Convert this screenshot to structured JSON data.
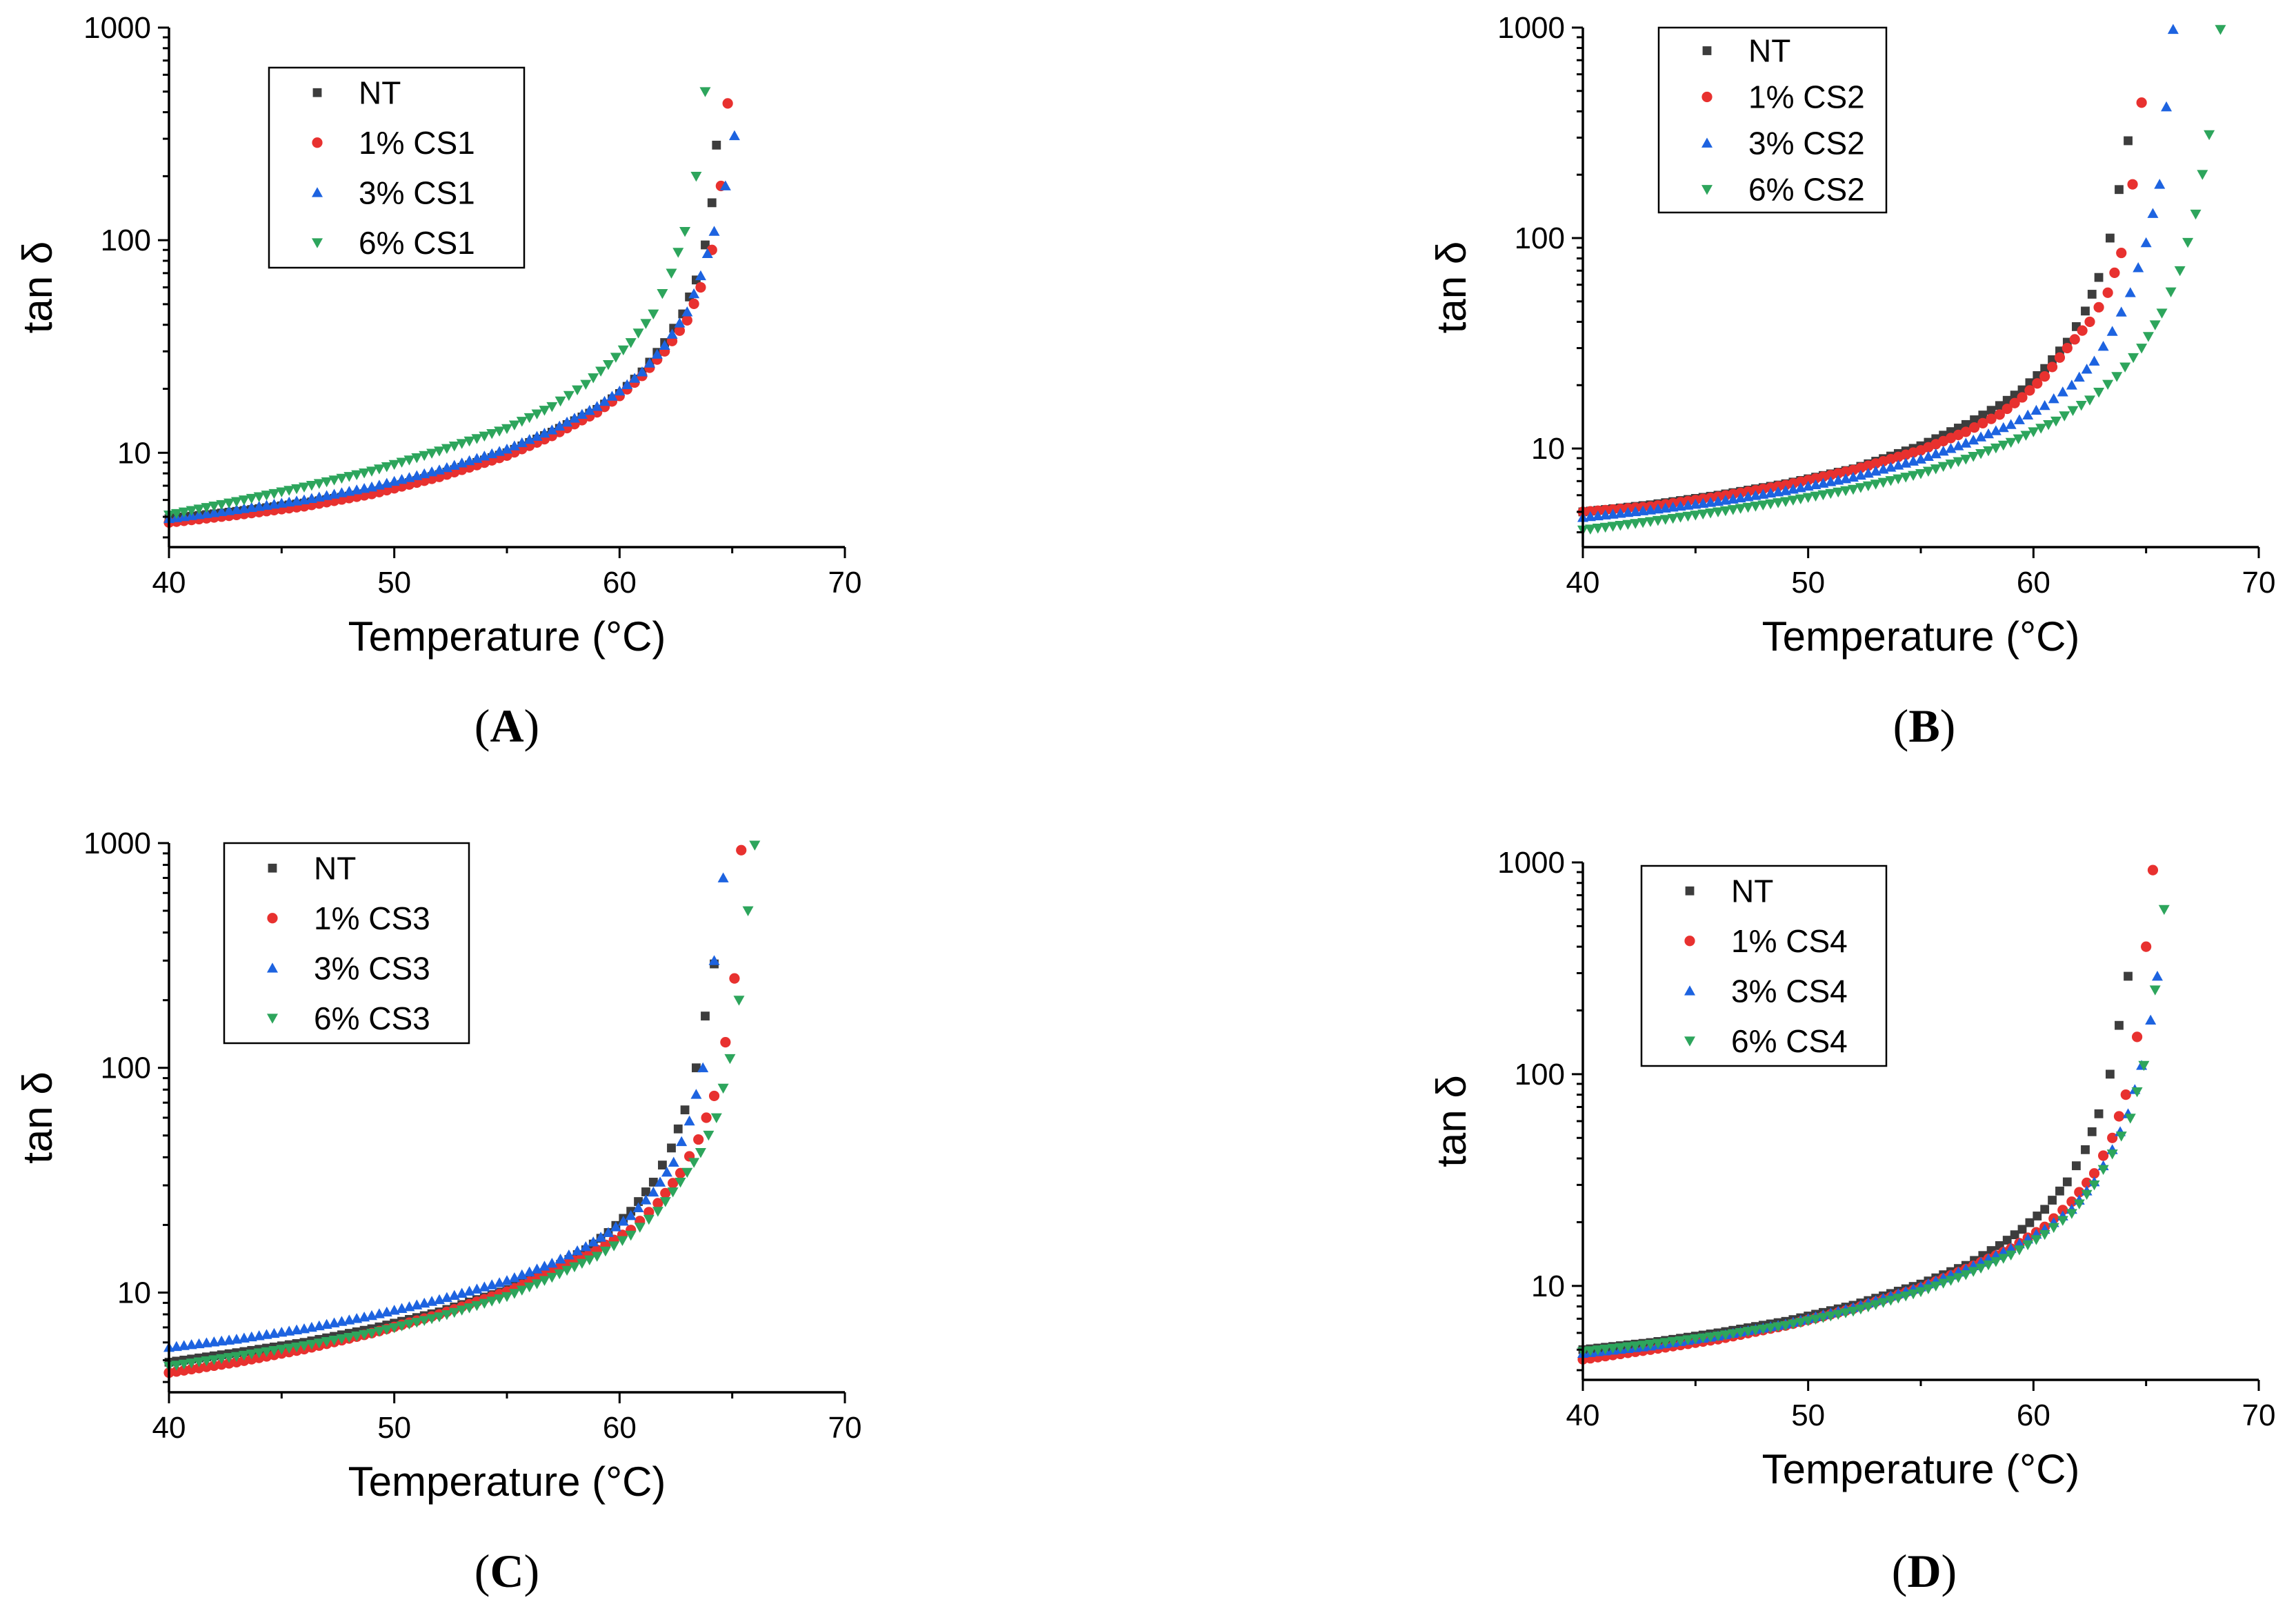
{
  "figure": {
    "panel_labels": [
      "A",
      "B",
      "C",
      "D"
    ]
  },
  "colors": {
    "NT": "#3d3d3d",
    "CS_1pct": "#e8312f",
    "CS_3pct": "#1d63e0",
    "CS_6pct": "#2da55c"
  },
  "chart_data": [
    {
      "panel": "A",
      "type": "scatter",
      "xlabel": "Temperature (°C)",
      "ylabel": "tan δ",
      "xlim": [
        40,
        70
      ],
      "ylim": [
        3.6,
        1000
      ],
      "yscale": "log",
      "x_ticks": [
        40,
        50,
        60,
        70
      ],
      "y_ticks": [
        10,
        100,
        1000
      ],
      "y_tick_labels": [
        "10",
        "100",
        "1000"
      ],
      "legend_position": "top-left",
      "series": [
        {
          "name": "NT",
          "marker": "square",
          "color": "#3d3d3d",
          "x": [
            40,
            43,
            46,
            49,
            52,
            55,
            57,
            59,
            60,
            61,
            62,
            62.8,
            63.4,
            63.8,
            64.1,
            64.3
          ],
          "y": [
            4.9,
            5.3,
            5.8,
            6.5,
            7.9,
            10,
            12.5,
            16,
            19,
            24,
            33,
            45,
            65,
            95,
            150,
            280
          ]
        },
        {
          "name": "1% CS1",
          "marker": "circle",
          "color": "#e8312f",
          "x": [
            40,
            43,
            46,
            49,
            52,
            55,
            57,
            59,
            60,
            61,
            62,
            63,
            63.6,
            64.1,
            64.5,
            64.8
          ],
          "y": [
            4.7,
            5.1,
            5.6,
            6.4,
            7.7,
            9.7,
            12,
            15.5,
            18.5,
            23,
            30,
            42,
            60,
            90,
            180,
            440
          ]
        },
        {
          "name": "3% CS1",
          "marker": "triangle-up",
          "color": "#1d63e0",
          "x": [
            40,
            43,
            46,
            49,
            52,
            55,
            57,
            59,
            60,
            61,
            62,
            63,
            63.6,
            64.2,
            64.7,
            65.1
          ],
          "y": [
            4.9,
            5.4,
            6,
            6.9,
            8.3,
            10.4,
            12.8,
            16.5,
            19.5,
            24,
            32,
            46,
            68,
            110,
            180,
            310
          ]
        },
        {
          "name": "6% CS1",
          "marker": "triangle-down",
          "color": "#2da55c",
          "x": [
            40,
            43,
            46,
            49,
            52,
            55,
            57,
            58.5,
            59.5,
            60.5,
            61.5,
            62.3,
            62.9,
            63.4,
            63.8
          ],
          "y": [
            5.1,
            5.9,
            6.9,
            8.2,
            10.2,
            13,
            16.5,
            21,
            26,
            33,
            45,
            70,
            110,
            200,
            500
          ]
        }
      ]
    },
    {
      "panel": "B",
      "type": "scatter",
      "xlabel": "Temperature (°C)",
      "ylabel": "tan δ",
      "xlim": [
        40,
        70
      ],
      "ylim": [
        3.4,
        1000
      ],
      "yscale": "log",
      "x_ticks": [
        40,
        50,
        60,
        70
      ],
      "y_ticks": [
        10,
        100,
        1000
      ],
      "y_tick_labels": [
        "10",
        "100",
        "1000"
      ],
      "legend_position": "top-left",
      "series": [
        {
          "name": "NT",
          "marker": "square",
          "color": "#3d3d3d",
          "x": [
            40,
            43,
            46,
            49,
            52,
            55,
            57,
            58.5,
            59.5,
            60.5,
            61.5,
            62.3,
            62.9,
            63.4,
            63.8,
            64.2
          ],
          "y": [
            5,
            5.4,
            6,
            6.8,
            8,
            10.3,
            13,
            16,
            19,
            24,
            32,
            45,
            65,
            100,
            170,
            290
          ]
        },
        {
          "name": "1% CS2",
          "marker": "circle",
          "color": "#e8312f",
          "x": [
            40,
            43,
            46,
            49,
            52,
            55,
            57,
            58.5,
            59.5,
            60.5,
            61.5,
            62.5,
            63.3,
            63.9,
            64.4,
            64.8
          ],
          "y": [
            5,
            5.3,
            5.9,
            6.7,
            7.9,
            9.8,
            12,
            14.5,
            17.5,
            22,
            30,
            40,
            55,
            85,
            180,
            440
          ]
        },
        {
          "name": "3% CS2",
          "marker": "triangle-up",
          "color": "#1d63e0",
          "x": [
            40,
            43,
            46,
            49,
            52,
            55,
            57,
            59,
            60.5,
            61.7,
            62.7,
            63.5,
            64.3,
            65,
            65.6,
            66.2
          ],
          "y": [
            4.7,
            5.1,
            5.6,
            6.3,
            7.3,
            8.9,
            10.6,
            13,
            16,
            20,
            26,
            36,
            55,
            95,
            180,
            980
          ]
        },
        {
          "name": "6% CS2",
          "marker": "triangle-down",
          "color": "#2da55c",
          "x": [
            40,
            43,
            46,
            49,
            52,
            55,
            57,
            59,
            61,
            62.5,
            63.7,
            64.8,
            65.7,
            66.5,
            67.2,
            67.8,
            68.3
          ],
          "y": [
            4.1,
            4.5,
            5,
            5.6,
            6.4,
            7.6,
            8.9,
            10.7,
            13.5,
            17,
            22,
            30,
            44,
            70,
            130,
            310,
            980
          ]
        }
      ]
    },
    {
      "panel": "C",
      "type": "scatter",
      "xlabel": "Temperature (°C)",
      "ylabel": "tan δ",
      "xlim": [
        40,
        70
      ],
      "ylim": [
        3.6,
        1000
      ],
      "yscale": "log",
      "x_ticks": [
        40,
        50,
        60,
        70
      ],
      "y_ticks": [
        10,
        100,
        1000
      ],
      "y_tick_labels": [
        "10",
        "100",
        "1000"
      ],
      "legend_position": "top-left",
      "series": [
        {
          "name": "NT",
          "marker": "square",
          "color": "#3d3d3d",
          "x": [
            40,
            43,
            46,
            49,
            52,
            55,
            57,
            58.5,
            59.5,
            60.5,
            61.5,
            62.3,
            62.9,
            63.4,
            63.8,
            64.2
          ],
          "y": [
            4.9,
            5.4,
            6,
            6.9,
            8.2,
            10.3,
            12.7,
            15.5,
            18.5,
            23,
            31,
            44,
            65,
            100,
            170,
            290
          ]
        },
        {
          "name": "1% CS3",
          "marker": "circle",
          "color": "#e8312f",
          "x": [
            40,
            43,
            46,
            49,
            52,
            55,
            57,
            59,
            60.5,
            61.7,
            62.7,
            63.5,
            64.2,
            64.7,
            65.1,
            65.4
          ],
          "y": [
            4.4,
            4.9,
            5.6,
            6.6,
            8,
            10.1,
            12.4,
            15.5,
            19,
            25,
            34,
            48,
            75,
            130,
            250,
            930
          ]
        },
        {
          "name": "3% CS3",
          "marker": "triangle-up",
          "color": "#1d63e0",
          "x": [
            40,
            43,
            46,
            49,
            52,
            55,
            57,
            58.5,
            59.5,
            60.5,
            61.5,
            62.4,
            63.1,
            63.7,
            64.2,
            64.6
          ],
          "y": [
            5.7,
            6.2,
            6.9,
            7.9,
            9.3,
            11.3,
            13.5,
            16,
            18.5,
            22,
            28,
            38,
            58,
            100,
            300,
            700
          ]
        },
        {
          "name": "6% CS3",
          "marker": "triangle-down",
          "color": "#2da55c",
          "x": [
            40,
            43,
            46,
            49,
            52,
            55,
            57,
            59,
            60.5,
            61.7,
            62.7,
            63.6,
            64.3,
            64.9,
            65.3,
            65.7,
            66
          ],
          "y": [
            4.7,
            5.2,
            5.8,
            6.6,
            7.8,
            9.6,
            11.7,
            14.5,
            18,
            23,
            31,
            42,
            60,
            110,
            200,
            500,
            980
          ]
        }
      ]
    },
    {
      "panel": "D",
      "type": "scatter",
      "xlabel": "Temperature (°C)",
      "ylabel": "tan δ",
      "xlim": [
        40,
        70
      ],
      "ylim": [
        3.6,
        1000
      ],
      "yscale": "log",
      "x_ticks": [
        40,
        50,
        60,
        70
      ],
      "y_ticks": [
        10,
        100,
        1000
      ],
      "y_tick_labels": [
        "10",
        "100",
        "1000"
      ],
      "legend_position": "top-left",
      "series": [
        {
          "name": "NT",
          "marker": "square",
          "color": "#3d3d3d",
          "x": [
            40,
            43,
            46,
            49,
            52,
            55,
            57,
            58.5,
            59.5,
            60.5,
            61.5,
            62.3,
            62.9,
            63.4,
            63.8,
            64.2
          ],
          "y": [
            5,
            5.4,
            6,
            6.8,
            8.1,
            10.2,
            12.5,
            15.5,
            18.5,
            23,
            31,
            44,
            65,
            100,
            170,
            290
          ]
        },
        {
          "name": "1% CS4",
          "marker": "circle",
          "color": "#e8312f",
          "x": [
            40,
            43,
            46,
            49,
            52,
            55,
            57,
            59,
            60.5,
            61.7,
            62.7,
            63.5,
            64.1,
            64.6,
            65,
            65.3
          ],
          "y": [
            4.5,
            5,
            5.6,
            6.5,
            7.8,
            9.8,
            12,
            15,
            19,
            25,
            34,
            50,
            80,
            150,
            400,
            920
          ]
        },
        {
          "name": "3% CS4",
          "marker": "triangle-up",
          "color": "#1d63e0",
          "x": [
            40,
            43,
            46,
            49,
            52,
            55,
            57,
            59,
            60.5,
            61.7,
            62.7,
            63.5,
            64.2,
            64.8,
            65.2,
            65.5
          ],
          "y": [
            4.8,
            5.2,
            5.8,
            6.6,
            7.9,
            9.9,
            12,
            15,
            18.5,
            23,
            31,
            44,
            65,
            110,
            180,
            290
          ]
        },
        {
          "name": "6% CS4",
          "marker": "triangle-down",
          "color": "#2da55c",
          "x": [
            40,
            43,
            46,
            49,
            52,
            55,
            57,
            59,
            60.5,
            61.7,
            62.7,
            63.5,
            64.3,
            64.9,
            65.4,
            65.8
          ],
          "y": [
            4.9,
            5.3,
            5.8,
            6.5,
            7.6,
            9.4,
            11.3,
            14,
            17.5,
            22,
            30,
            42,
            62,
            110,
            250,
            600
          ]
        }
      ]
    }
  ]
}
